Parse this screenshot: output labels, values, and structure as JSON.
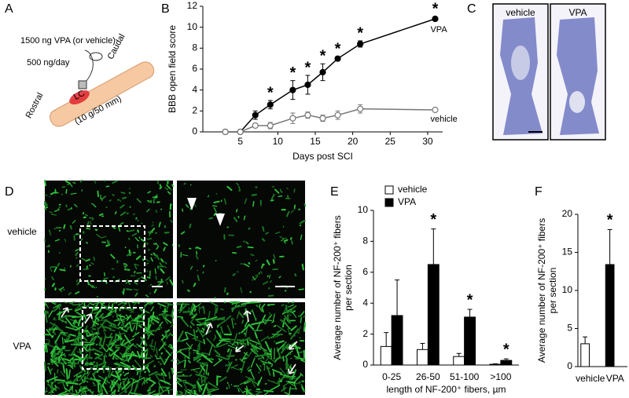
{
  "panel_letters": [
    "A",
    "B",
    "C",
    "D",
    "E",
    "F"
  ],
  "diagram": {
    "injection": "1500 ng VPA (or vehicle)",
    "rate": "500 ng/day",
    "caudal": "Caudal",
    "rostral": "Rostral",
    "lesion": "LC",
    "impact": "(10 g/50 mm)"
  },
  "histology": {
    "left": "vehicle",
    "right": "VPA"
  },
  "micrographs": {
    "top_row": "vehicle",
    "bottom_row": "VPA"
  },
  "chart_data": [
    {
      "type": "line",
      "ylabel": "BBB open field score",
      "xlabel": "Days post SCI",
      "x": [
        3,
        5,
        7,
        9,
        12,
        14,
        16,
        18,
        21,
        31
      ],
      "xlim": [
        0,
        32
      ],
      "xticks": [
        5,
        10,
        15,
        20,
        25,
        30
      ],
      "ylim": [
        0,
        12
      ],
      "yticks": [
        0,
        2,
        4,
        6,
        8,
        10,
        12
      ],
      "series": [
        {
          "name": "VPA",
          "color": "#000000",
          "fill": "#000000",
          "values": [
            0,
            0,
            1.6,
            2.6,
            4.0,
            4.5,
            5.7,
            7.0,
            8.4,
            10.8
          ],
          "errors": [
            0,
            0,
            0.4,
            0.4,
            0.9,
            0.9,
            0.8,
            0.2,
            0.3,
            0.2
          ],
          "annotations": [
            null,
            null,
            null,
            "*",
            "*",
            "*",
            "*",
            "*",
            "*",
            "*"
          ]
        },
        {
          "name": "vehicle",
          "color": "#777777",
          "fill": "#ffffff",
          "values": [
            0,
            0,
            0.6,
            0.6,
            1.3,
            1.6,
            1.3,
            1.6,
            2.2,
            2.1
          ],
          "errors": [
            0,
            0,
            0.2,
            0.3,
            0.5,
            0.3,
            0.3,
            0.4,
            0.4,
            0
          ],
          "annotations": [
            null,
            null,
            null,
            null,
            null,
            null,
            null,
            null,
            null,
            null
          ]
        }
      ]
    },
    {
      "type": "bar",
      "ylabel": [
        "Average number of NF-200⁺ fibers",
        "per section"
      ],
      "xlabel": "length of NF-200⁺ fibers, µm",
      "categories": [
        "0-25",
        "26-50",
        "51-100",
        ">100"
      ],
      "ylim": [
        0,
        10
      ],
      "yticks": [
        0,
        2,
        4,
        6,
        8,
        10
      ],
      "series": [
        {
          "name": "vehicle",
          "color": "#ffffff",
          "values": [
            1.2,
            1.0,
            0.55,
            0.05
          ],
          "errors": [
            0.9,
            0.4,
            0.2,
            0.03
          ],
          "annotations": [
            null,
            null,
            null,
            null
          ]
        },
        {
          "name": "VPA",
          "color": "#000000",
          "values": [
            3.2,
            6.5,
            3.1,
            0.3
          ],
          "errors": [
            2.3,
            2.3,
            0.5,
            0.1
          ],
          "annotations": [
            null,
            "*",
            "*",
            "*"
          ]
        }
      ]
    },
    {
      "type": "bar",
      "ylabel": [
        "Average number of NF-200⁺ fibers",
        "per section"
      ],
      "categories": [
        "vehicle",
        "VPA"
      ],
      "ylim": [
        0,
        20
      ],
      "yticks": [
        0,
        5,
        10,
        15,
        20
      ],
      "series": [
        {
          "colors": [
            "#ffffff",
            "#000000"
          ],
          "values": [
            3.0,
            13.4
          ],
          "errors": [
            0.9,
            4.6
          ],
          "annotations": [
            null,
            "*"
          ]
        }
      ]
    }
  ]
}
